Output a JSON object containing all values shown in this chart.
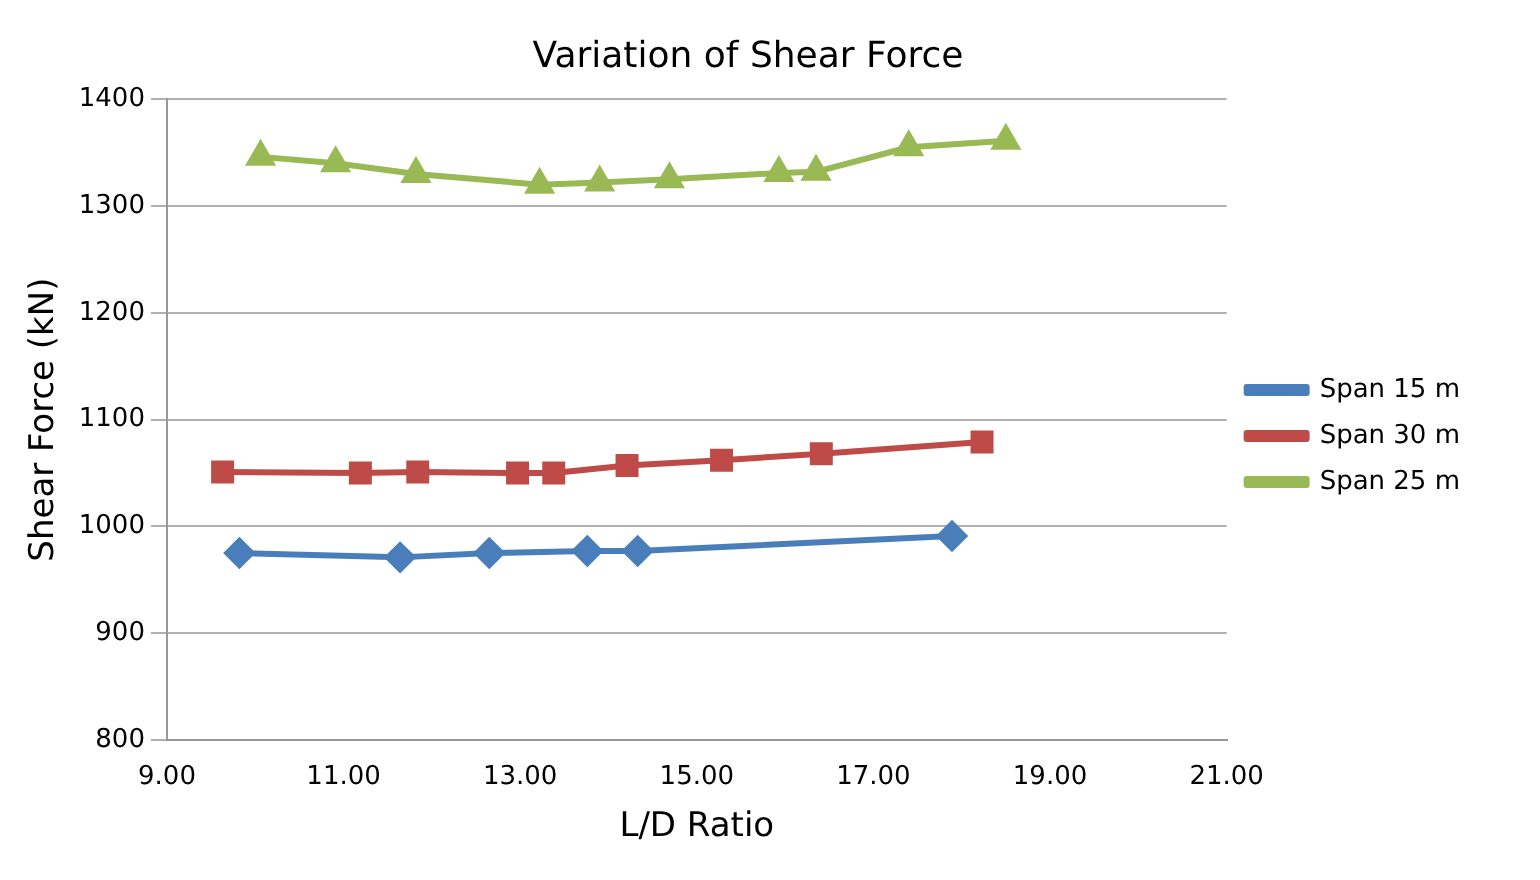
{
  "chart_data": {
    "type": "line",
    "title": "Variation of Shear Force",
    "xlabel": "L/D Ratio",
    "ylabel": "Shear Force (kN)",
    "xlim": [
      9,
      21
    ],
    "xticks": [
      {
        "value": 9,
        "label": "9.00"
      },
      {
        "value": 11,
        "label": "11.00"
      },
      {
        "value": 13,
        "label": "13.00"
      },
      {
        "value": 15,
        "label": "15.00"
      },
      {
        "value": 17,
        "label": "17.00"
      },
      {
        "value": 19,
        "label": "19.00"
      },
      {
        "value": 21,
        "label": "21.00"
      }
    ],
    "ylim": [
      800,
      1400
    ],
    "yticks": [
      800,
      900,
      1000,
      1100,
      1200,
      1300,
      1400
    ],
    "grid": "y",
    "legend": "right",
    "series": [
      {
        "name": "Span 15 m",
        "color": "#4a7ebb",
        "marker": "diamond",
        "x": [
          9.82,
          11.64,
          12.65,
          13.76,
          14.33,
          17.89
        ],
        "values": [
          975,
          971,
          975,
          977,
          977,
          991
        ]
      },
      {
        "name": "Span 30 m",
        "color": "#be4b48",
        "marker": "square",
        "x": [
          9.63,
          11.19,
          11.84,
          12.97,
          13.38,
          14.21,
          15.28,
          16.41,
          18.23
        ],
        "values": [
          1051,
          1050,
          1051,
          1050,
          1050,
          1057,
          1062,
          1068,
          1079
        ]
      },
      {
        "name": "Span 25 m",
        "color": "#98b954",
        "marker": "triangle",
        "x": [
          10.06,
          10.91,
          11.82,
          13.22,
          13.9,
          14.69,
          15.93,
          16.35,
          17.4,
          18.5
        ],
        "values": [
          1346,
          1340,
          1330,
          1320,
          1322,
          1325,
          1331,
          1332,
          1355,
          1361
        ]
      }
    ]
  }
}
